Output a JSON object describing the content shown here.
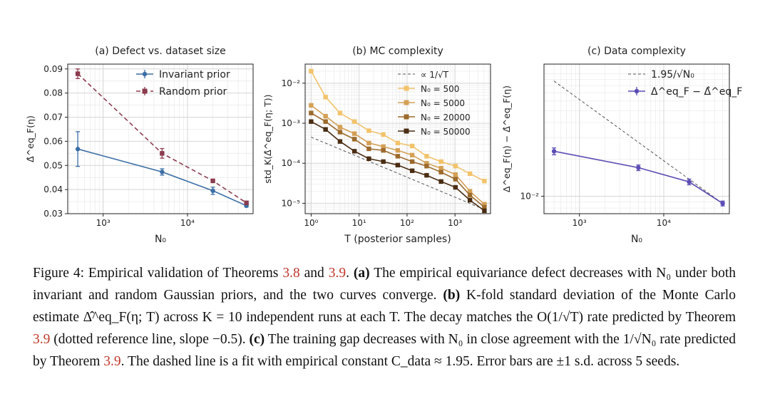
{
  "chart_data": [
    {
      "type": "line",
      "title": "(a) Defect vs. dataset size",
      "xlabel": "N₀",
      "ylabel": "Δ̂^eq_F(η)",
      "xscale": "log",
      "xlim": [
        380,
        60000
      ],
      "ylim": [
        0.03,
        0.092
      ],
      "xticks": [
        {
          "v": 1000,
          "label": "10³"
        },
        {
          "v": 10000,
          "label": "10⁴"
        }
      ],
      "yticks": [
        {
          "v": 0.03,
          "label": "0.03"
        },
        {
          "v": 0.04,
          "label": "0.04"
        },
        {
          "v": 0.05,
          "label": "0.05"
        },
        {
          "v": 0.06,
          "label": "0.06"
        },
        {
          "v": 0.07,
          "label": "0.07"
        },
        {
          "v": 0.08,
          "label": "0.08"
        },
        {
          "v": 0.09,
          "label": "0.09"
        }
      ],
      "grid": true,
      "legend": "top-right",
      "series": [
        {
          "name": "Invariant prior",
          "color": "#3b6ea5",
          "dash": "none",
          "marker": "circle",
          "x": [
            500,
            5000,
            20000,
            50000
          ],
          "y": [
            0.0568,
            0.0473,
            0.0395,
            0.0333
          ],
          "err": [
            0.0072,
            0.0013,
            0.0015,
            0.0005
          ]
        },
        {
          "name": "Random prior",
          "color": "#8c3b4e",
          "dash": "6,4",
          "marker": "square",
          "x": [
            500,
            5000,
            20000,
            50000
          ],
          "y": [
            0.088,
            0.055,
            0.0436,
            0.0345
          ],
          "err": [
            0.002,
            0.002,
            0.0007,
            0.0004
          ]
        }
      ]
    },
    {
      "type": "line",
      "title": "(b) MC complexity",
      "xlabel": "T (posterior samples)",
      "ylabel": "std_K(Δ̂^eq_F(η; T))",
      "xscale": "log",
      "yscale": "log",
      "xlim": [
        0.75,
        5500
      ],
      "ylim": [
        5.5e-06,
        0.03
      ],
      "xticks": [
        {
          "v": 1,
          "label": "10⁰"
        },
        {
          "v": 10,
          "label": "10¹"
        },
        {
          "v": 100,
          "label": "10²"
        },
        {
          "v": 1000,
          "label": "10³"
        }
      ],
      "yticks": [
        {
          "v": 1e-05,
          "label": "10⁻⁵"
        },
        {
          "v": 0.0001,
          "label": "10⁻⁴"
        },
        {
          "v": 0.001,
          "label": "10⁻³"
        },
        {
          "v": 0.01,
          "label": "10⁻²"
        }
      ],
      "grid": true,
      "legend": "top-right",
      "reference": {
        "name": "∝ 1/√T",
        "color": "#555555",
        "dash": "4,3",
        "x": [
          1,
          4000
        ],
        "y": [
          0.00045,
          7.1e-06
        ]
      },
      "series": [
        {
          "name": "N₀ = 500",
          "color": "#f2c36b",
          "x": [
            1,
            2,
            4,
            8,
            16,
            32,
            64,
            128,
            256,
            512,
            1024,
            2048,
            4096
          ],
          "y": [
            0.02,
            0.0045,
            0.0018,
            0.0011,
            0.00065,
            0.00052,
            0.00032,
            0.00027,
            0.00015,
            0.00011,
            8.5e-05,
            5.5e-05,
            3.6e-05
          ]
        },
        {
          "name": "N₀ = 5000",
          "color": "#d4a055",
          "x": [
            1,
            2,
            4,
            8,
            16,
            32,
            64,
            128,
            256,
            512,
            1024,
            2048,
            4096
          ],
          "y": [
            0.0028,
            0.0015,
            0.0008,
            0.00055,
            0.00032,
            0.00026,
            0.00021,
            0.00016,
            0.0001,
            7.5e-05,
            5.2e-05,
            2e-05,
            9.5e-06
          ]
        },
        {
          "name": "N₀ = 20000",
          "color": "#9c6a2c",
          "x": [
            1,
            2,
            4,
            8,
            16,
            32,
            64,
            128,
            256,
            512,
            1024,
            2048,
            4096
          ],
          "y": [
            0.0018,
            0.0011,
            0.0006,
            0.0004,
            0.00023,
            0.00021,
            0.00015,
            0.00011,
            8.5e-05,
            6e-05,
            4e-05,
            1.6e-05,
            8e-06
          ]
        },
        {
          "name": "N₀ = 50000",
          "color": "#4a2d13",
          "x": [
            1,
            2,
            4,
            8,
            16,
            32,
            64,
            128,
            256,
            512,
            1024,
            2048,
            4096
          ],
          "y": [
            0.0011,
            0.0007,
            0.00035,
            0.0002,
            0.00013,
            0.00011,
            9e-05,
            6.5e-05,
            5e-05,
            3.5e-05,
            2.5e-05,
            1.2e-05,
            6.5e-06
          ]
        }
      ]
    },
    {
      "type": "line",
      "title": "(c) Data complexity",
      "xlabel": "N₀",
      "ylabel": "Δ^eq_F(η) − Δ̂^eq_F(η)",
      "xscale": "log",
      "yscale": "log",
      "xlim": [
        380,
        60000
      ],
      "ylim": [
        0.0072,
        0.12
      ],
      "xticks": [
        {
          "v": 1000,
          "label": "10³"
        },
        {
          "v": 10000,
          "label": "10⁴"
        }
      ],
      "yticks": [
        {
          "v": 0.01,
          "label": "10⁻²"
        }
      ],
      "grid": true,
      "legend": "top-right",
      "reference": {
        "name": "1.95/√N₀",
        "color": "#555555",
        "dash": "4,3",
        "x": [
          500,
          50000
        ],
        "y": [
          0.0872,
          0.00872
        ]
      },
      "series": [
        {
          "name": "Δ^eq_F − Δ̂^eq_F",
          "color": "#5b4db3",
          "marker": "circle",
          "x": [
            500,
            5000,
            20000,
            50000
          ],
          "y": [
            0.0233,
            0.0171,
            0.0131,
            0.00873
          ],
          "err": [
            0.0015,
            0.0009,
            0.0007,
            0.0004
          ]
        }
      ]
    }
  ],
  "caption": {
    "label": "Figure 4: Empirical validation of Theorems ",
    "ref1": "3.8",
    "and": " and ",
    "ref2": "3.9",
    "dot": ". ",
    "a_tag": "(a)",
    "a_text": " The empirical equivariance defect decreases with N₀ under both invariant and random Gaussian priors, and the two curves converge. ",
    "b_tag": "(b)",
    "b_text1": " K-fold standard deviation of the Monte Carlo estimate Δ̂^eq_F(η; T) across K = 10 independent runs at each T. The decay matches the O(1/√T) rate predicted by Theorem ",
    "b_ref": "3.9",
    "b_text2": " (dotted reference line, slope −0.5). ",
    "c_tag": "(c)",
    "c_text1": " The training gap decreases with N₀ in close agreement with the 1/√N₀ rate predicted by Theorem ",
    "c_ref": "3.9",
    "c_text2": ". The dashed line is a fit with empirical constant C_data ≈ 1.95. Error bars are ±1 s.d. across 5 seeds."
  }
}
